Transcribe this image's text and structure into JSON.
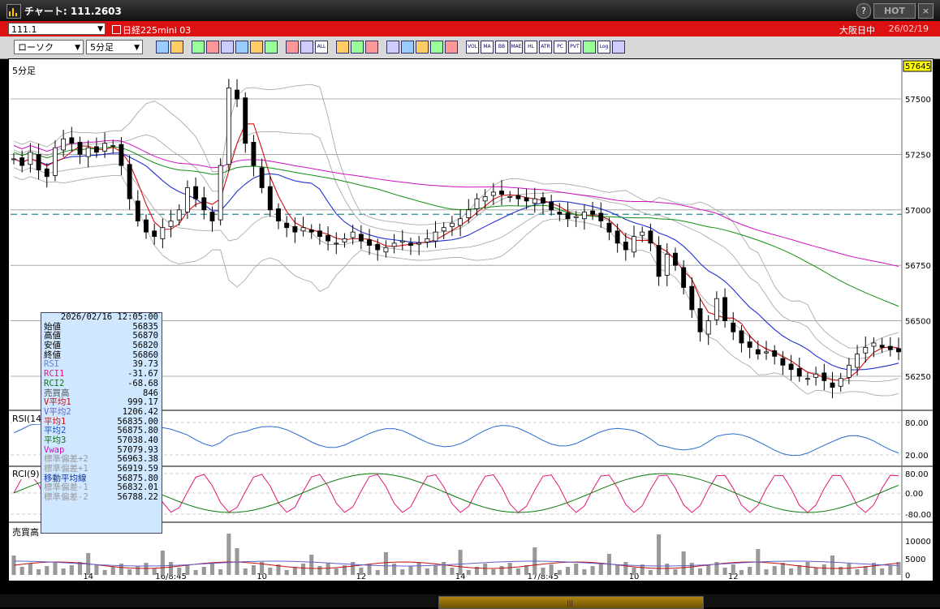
{
  "window": {
    "title": "チャート: 111.2603",
    "hot_label": "HOT",
    "help_label": "?",
    "close_label": "×"
  },
  "header": {
    "symbol_code": "111.1",
    "instrument": "日経225mini 03",
    "market": "大阪日中",
    "date": "26/02/19"
  },
  "toolbar": {
    "chart_type": "ローソク",
    "interval": "5分足",
    "tools": [
      "zoom-icon",
      "crosshair-icon",
      "pen-icon",
      "line-tool-icon",
      "cursor-icon",
      "fibo-icon",
      "memo-icon",
      "trash-icon",
      "candle-icon",
      "bar-icon",
      "ALL",
      "gear-icon",
      "wrench-icon",
      "palette-icon",
      "print-icon",
      "search-icon",
      "grid-icon",
      "compare-icon",
      "blank-icon",
      "VOL",
      "MA",
      "BB",
      "MAE",
      "HL",
      "ATR",
      "PC",
      "PVT",
      "box-icon",
      "Log",
      "export-icon"
    ]
  },
  "chart_data": {
    "type": "candlestick",
    "title": "5分足",
    "last_price_label": "57645",
    "y_ticks": [
      57500,
      57250,
      57000,
      56750,
      56500,
      56250
    ],
    "ylim": [
      56100,
      57650
    ],
    "x_labels": [
      {
        "text": "14",
        "i": 9
      },
      {
        "text": "16/8:45",
        "i": 19
      },
      {
        "text": "10",
        "i": 30
      },
      {
        "text": "12",
        "i": 42
      },
      {
        "text": "14",
        "i": 54
      },
      {
        "text": "17/8:45",
        "i": 64
      },
      {
        "text": "10",
        "i": 75
      },
      {
        "text": "12",
        "i": 87
      }
    ],
    "reference_line": 56980,
    "ohlc_sample_every_5min": "approximated",
    "closes": [
      57230,
      57200,
      57260,
      57180,
      57150,
      57280,
      57320,
      57300,
      57250,
      57280,
      57260,
      57300,
      57290,
      57200,
      57050,
      56950,
      56900,
      56880,
      56920,
      56950,
      57000,
      57100,
      57050,
      57000,
      56950,
      57200,
      57550,
      57500,
      57300,
      57200,
      57100,
      57000,
      56950,
      56920,
      56900,
      56920,
      56900,
      56880,
      56860,
      56850,
      56870,
      56900,
      56860,
      56840,
      56820,
      56830,
      56850,
      56860,
      56840,
      56850,
      56870,
      56900,
      56920,
      56940,
      56960,
      57000,
      57050,
      57060,
      57080,
      57070,
      57060,
      57050,
      57040,
      57050,
      57030,
      57000,
      56980,
      56960,
      56970,
      56990,
      56980,
      56950,
      56900,
      56850,
      56820,
      56880,
      56900,
      56850,
      56700,
      56800,
      56750,
      56650,
      56550,
      56450,
      56500,
      56600,
      56500,
      56450,
      56400,
      56380,
      56350,
      56360,
      56340,
      56300,
      56280,
      56250,
      56240,
      56260,
      56230,
      56200,
      56240,
      56300,
      56350,
      56380,
      56400,
      56380,
      56370,
      56360
    ],
    "rsi": {
      "ticks": [
        "80.00",
        "20.00"
      ],
      "label": "RSI(14)"
    },
    "rci": {
      "ticks": [
        "80.00",
        "0.00",
        "-80.00"
      ],
      "label": "RCI(9)"
    },
    "volume": {
      "ticks": [
        "10000",
        "5000",
        "0"
      ],
      "label": "売買高"
    }
  },
  "info_box": {
    "datetime": "2026/02/16  12:05:00",
    "rows": [
      {
        "label": "始値",
        "value": "56835",
        "color": "#000"
      },
      {
        "label": "高値",
        "value": "56870",
        "color": "#000"
      },
      {
        "label": "安値",
        "value": "56820",
        "color": "#000"
      },
      {
        "label": "終値",
        "value": "56860",
        "color": "#000"
      },
      {
        "label": "RSI",
        "value": "39.73",
        "color": "#6a7fcc"
      },
      {
        "label": "RCI1",
        "value": "-31.67",
        "color": "#e0187a"
      },
      {
        "label": "RCI2",
        "value": "-68.68",
        "color": "#0a7a0a"
      },
      {
        "label": "売買高",
        "value": "846",
        "color": "#555"
      },
      {
        "label": "V平均1",
        "value": "999.17",
        "color": "#c01010"
      },
      {
        "label": "V平均2",
        "value": "1206.42",
        "color": "#6060d0"
      },
      {
        "label": "平均1",
        "value": "56835.00",
        "color": "#d01010"
      },
      {
        "label": "平均2",
        "value": "56875.80",
        "color": "#1050d0"
      },
      {
        "label": "平均3",
        "value": "57038.40",
        "color": "#087008"
      },
      {
        "label": "Vwap",
        "value": "57079.93",
        "color": "#d010c0"
      },
      {
        "label": "標準偏差+2",
        "value": "56963.38",
        "color": "#999"
      },
      {
        "label": "標準偏差+1",
        "value": "56919.59",
        "color": "#999"
      },
      {
        "label": "移動平均線",
        "value": "56875.80",
        "color": "#1030a0"
      },
      {
        "label": "標準偏差-1",
        "value": "56832.01",
        "color": "#999"
      },
      {
        "label": "標準偏差-2",
        "value": "56788.22",
        "color": "#999"
      }
    ]
  }
}
